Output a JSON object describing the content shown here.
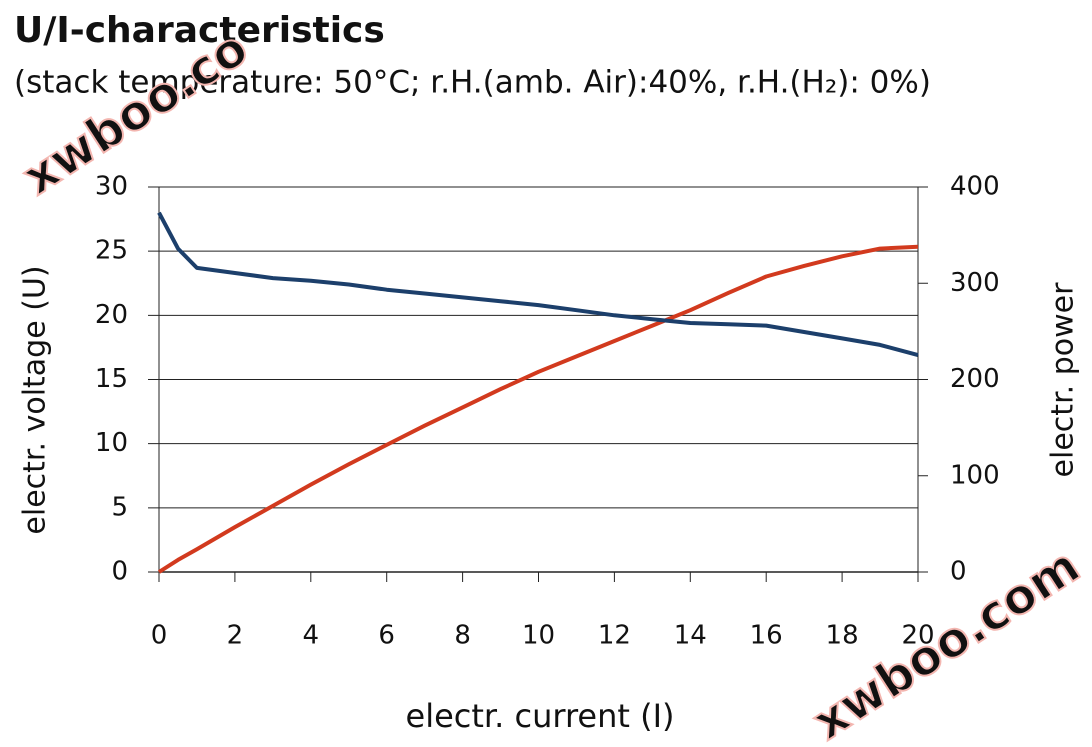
{
  "chart_data": {
    "type": "line",
    "title": "U/I-characteristics",
    "subtitle": "(stack temperature: 50°C; r.H.(amb. Air):40%, r.H.(H₂): 0%)",
    "x_label": "electr. current (I)",
    "y_label": "electr. voltage (U)",
    "y2_label": "electr. power",
    "watermarks": [
      "xwboo.co",
      "xwboo.com"
    ],
    "x": [
      0,
      0.5,
      1,
      2,
      3,
      4,
      5,
      6,
      7,
      8,
      9,
      10,
      11,
      12,
      13,
      14,
      15,
      16,
      17,
      18,
      19,
      20
    ],
    "series": [
      {
        "name": "electr. voltage (U)",
        "color": "#1c3f6b",
        "values": [
          28,
          25.2,
          23.7,
          23.3,
          22.9,
          22.7,
          22.4,
          22.0,
          21.7,
          21.4,
          21.1,
          20.8,
          20.4,
          20.0,
          19.7,
          19.4,
          19.3,
          19.2,
          18.7,
          18.2,
          17.7,
          16.9
        ]
      },
      {
        "name": "electr. power",
        "color": "#d23a1e",
        "axis": "y2",
        "values": [
          0,
          12.6,
          23.7,
          46.6,
          68.7,
          90.8,
          112,
          132,
          152,
          171,
          190,
          208,
          224,
          240,
          256,
          272,
          290,
          307,
          318,
          328,
          336,
          338
        ]
      }
    ],
    "xlim": [
      0,
      20
    ],
    "xticks": [
      0,
      2,
      4,
      6,
      8,
      10,
      12,
      14,
      16,
      18,
      20
    ],
    "ylim": [
      0,
      30
    ],
    "yticks": [
      0,
      5,
      10,
      15,
      20,
      25,
      30
    ],
    "y2lim": [
      0,
      400
    ],
    "y2ticks": [
      0,
      100,
      200,
      300,
      400
    ],
    "grid": true
  }
}
